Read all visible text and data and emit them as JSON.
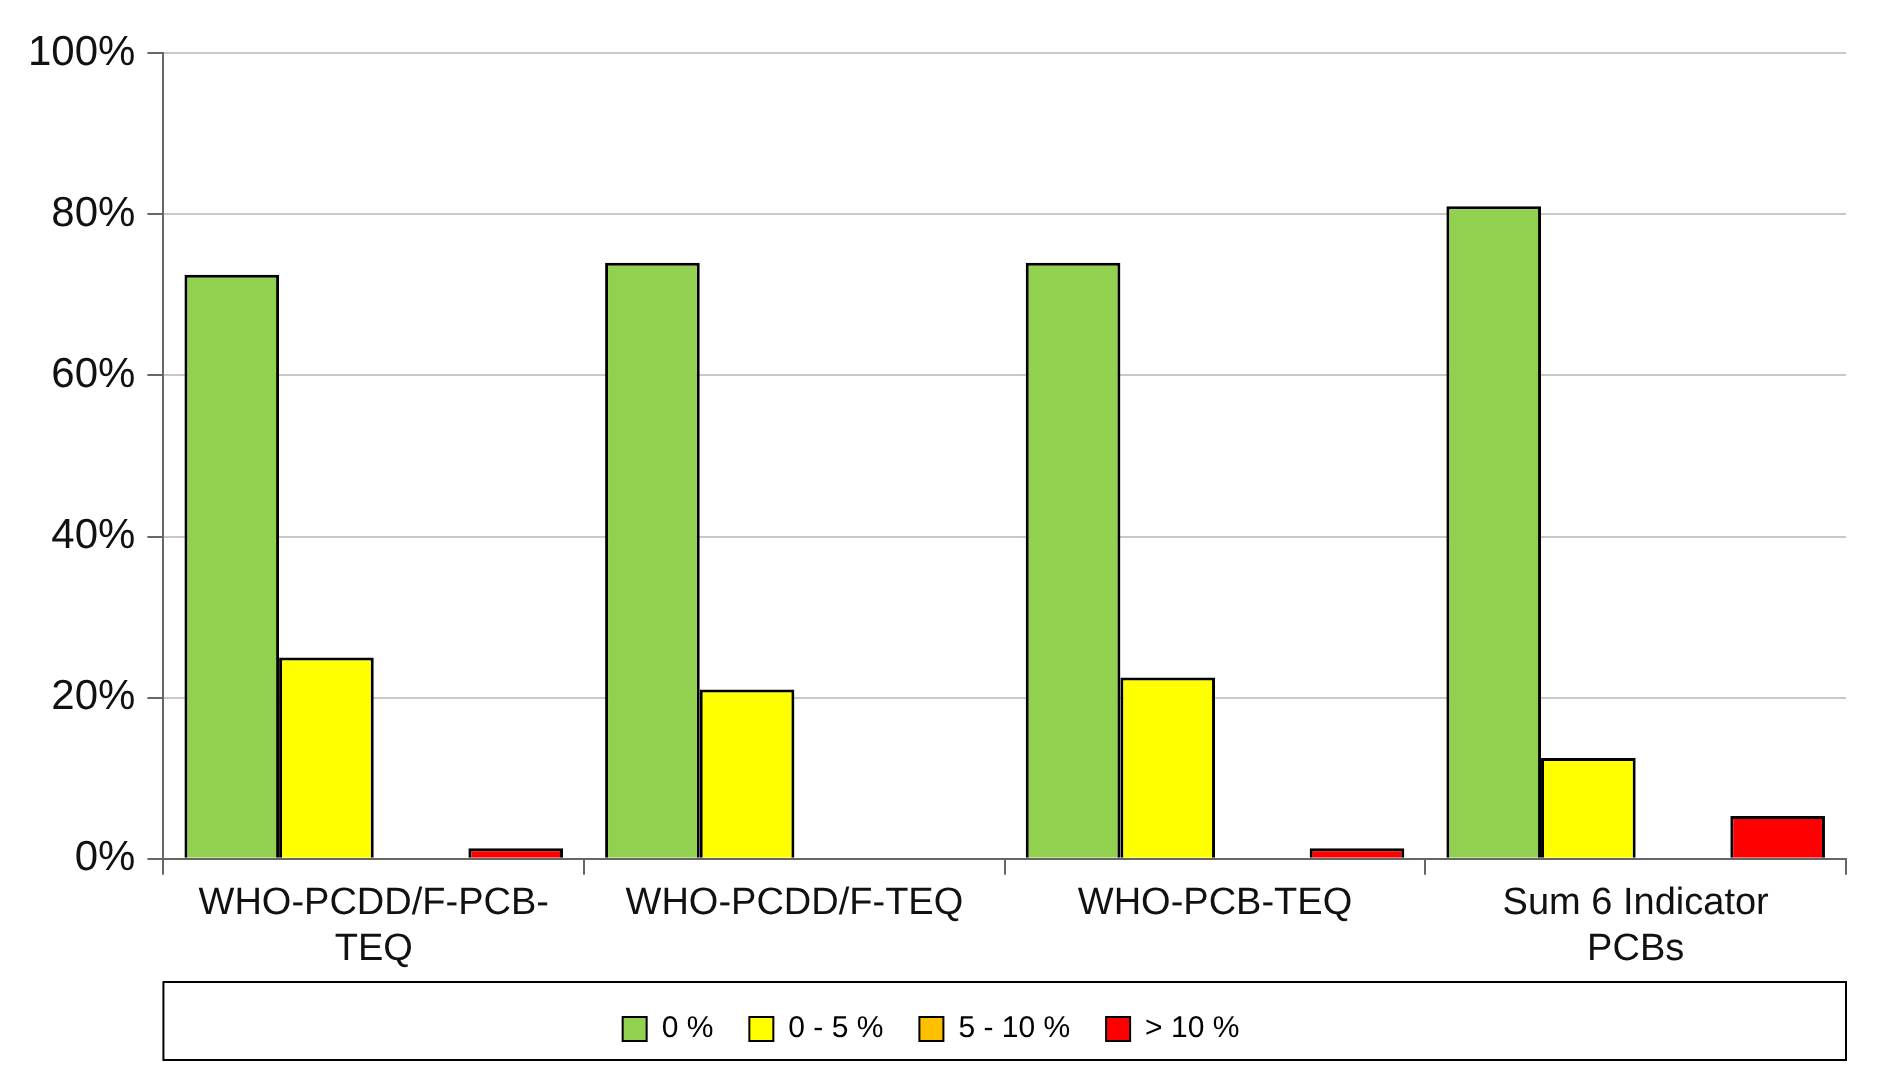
{
  "chart_data": {
    "type": "bar",
    "categories": [
      "WHO-PCDD/F-PCB-TEQ",
      "WHO-PCDD/F-TEQ",
      "WHO-PCB-TEQ",
      "Sum 6 Indicator PCBs"
    ],
    "series": [
      {
        "name": "0 %",
        "color": "#92d050",
        "values": [
          72.5,
          74,
          74,
          81
        ]
      },
      {
        "name": "0 - 5 %",
        "color": "#ffff00",
        "values": [
          25,
          21,
          22.5,
          12.5
        ]
      },
      {
        "name": "5 - 10 %",
        "color": "#ffc000",
        "values": [
          0,
          0,
          0,
          0
        ]
      },
      {
        "name": "> 10 %",
        "color": "#ff0000",
        "values": [
          1.3,
          0,
          1.3,
          5.3
        ]
      }
    ],
    "ylim": [
      0,
      100
    ],
    "yticks": [
      {
        "value": 0,
        "label": "0%"
      },
      {
        "value": 20,
        "label": "20%"
      },
      {
        "value": 40,
        "label": "40%"
      },
      {
        "value": 60,
        "label": "60%"
      },
      {
        "value": 80,
        "label": "80%"
      },
      {
        "value": 100,
        "label": "100%"
      }
    ],
    "grid": "y",
    "legend": "bottom"
  }
}
